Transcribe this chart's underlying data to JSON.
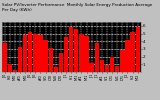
{
  "title": "Solar PV/Inverter Performance  Monthly Solar Energy Production Average Per Day (KWh)",
  "bar_color": "#ff0000",
  "background_color": "#c0c0c0",
  "plot_bg_color": "#000000",
  "grid_color": "#ffffff",
  "values": [
    3.8,
    1.1,
    0.3,
    3.2,
    4.8,
    5.2,
    4.9,
    4.8,
    4.2,
    3.1,
    0.7,
    2.5,
    4.5,
    5.8,
    5.6,
    5.0,
    4.7,
    1.2,
    3.8,
    1.5,
    0.9,
    2.0,
    0.8,
    2.8,
    4.2,
    5.2,
    5.9
  ],
  "xlabels": [
    "J/0",
    "F/0",
    "M/0",
    "A/0",
    "M/0",
    "J/0",
    "J/0",
    "A/0",
    "S/0",
    "O/0",
    "N/0",
    "D/0",
    "J/1",
    "F/1",
    "M/1",
    "A/1",
    "M/1",
    "J/1",
    "J/1",
    "A/1",
    "S/1",
    "O/1",
    "N/1",
    "D/1",
    "J/2",
    "F/2",
    "M/2"
  ],
  "ylim": [
    0,
    6.5
  ],
  "yticks": [
    1,
    2,
    3,
    4,
    5,
    6
  ],
  "ylabel_fontsize": 3.0,
  "xlabel_fontsize": 2.5,
  "title_fontsize": 3.0,
  "bar_width": 0.85,
  "figsize": [
    1.6,
    1.0
  ],
  "dpi": 100
}
